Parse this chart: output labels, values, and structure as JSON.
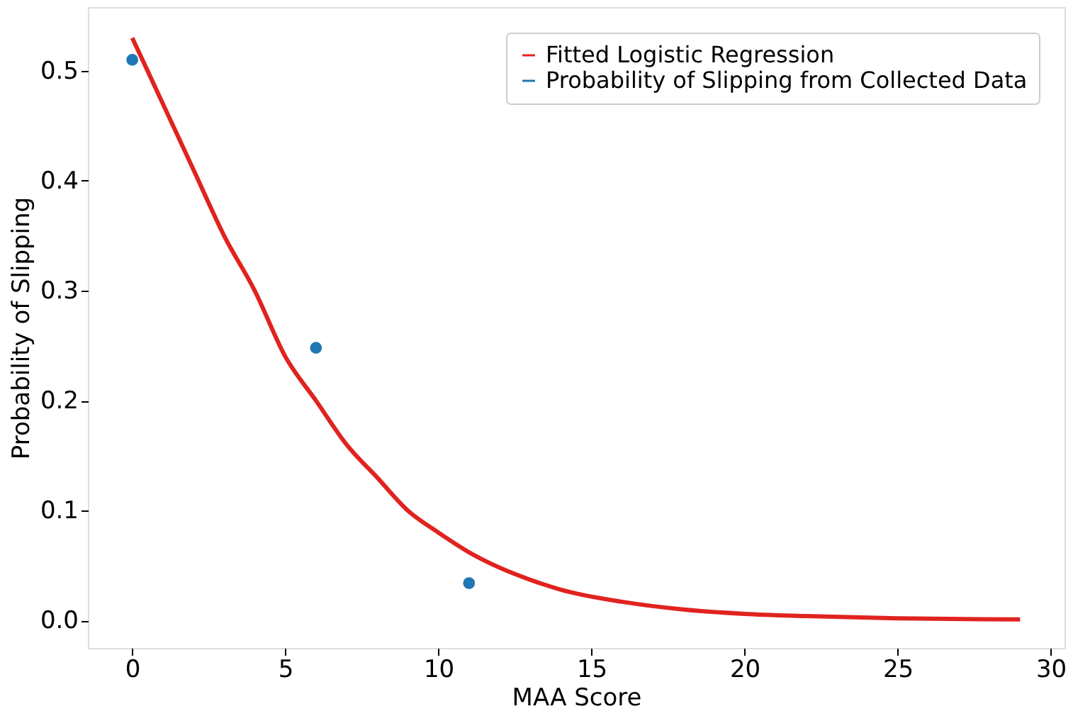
{
  "chart_data": {
    "type": "line",
    "xlabel": "MAA Score",
    "ylabel": "Probability of Slipping",
    "xlim": [
      -1.45,
      30.45
    ],
    "xticks": [
      0,
      5,
      10,
      15,
      20,
      25,
      30
    ],
    "ylim": [
      -0.025,
      0.558
    ],
    "yticks": [
      {
        "value": 0,
        "label": "0.0"
      },
      0.1,
      0.2,
      0.3,
      0.4,
      0.5
    ],
    "grid": false,
    "legend": "top right",
    "series": [
      {
        "name": "Fitted Logistic Regression",
        "color": "#e0231f",
        "marker": "none",
        "x": [
          0,
          1,
          2,
          3,
          4,
          5,
          6,
          7,
          8,
          9,
          10,
          11,
          12,
          13,
          14,
          16,
          18,
          20,
          22,
          25,
          29
        ],
        "values": [
          0.53,
          0.47,
          0.41,
          0.35,
          0.3,
          0.24,
          0.2,
          0.16,
          0.13,
          0.1,
          0.08,
          0.062,
          0.048,
          0.037,
          0.028,
          0.017,
          0.01,
          0.006,
          0.004,
          0.002,
          0.001
        ]
      },
      {
        "name": "Probability of Slipping from Collected Data",
        "type": "scatter",
        "color": "#1f77b4",
        "marker": "circle",
        "x": [
          0,
          6,
          11
        ],
        "values": [
          0.51,
          0.248,
          0.034
        ]
      }
    ]
  }
}
